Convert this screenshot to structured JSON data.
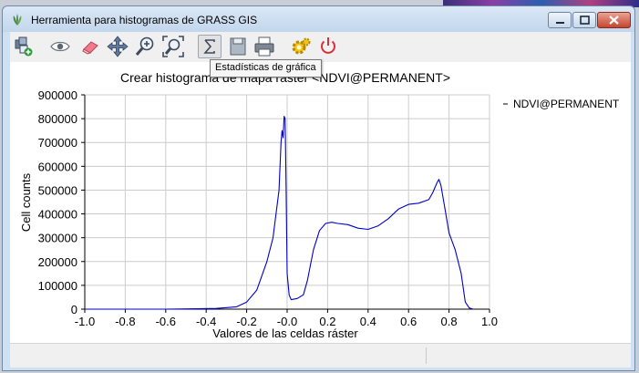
{
  "window": {
    "title": "Herramienta para histogramas de GRASS GIS"
  },
  "toolbar": {
    "tools": [
      {
        "name": "add-map-icon",
        "label": "Add raster map"
      },
      {
        "name": "eye-icon",
        "label": "Draw"
      },
      {
        "name": "eraser-icon",
        "label": "Erase"
      },
      {
        "name": "pan-icon",
        "label": "Pan"
      },
      {
        "name": "zoom-in-icon",
        "label": "Zoom"
      },
      {
        "name": "zoom-extent-icon",
        "label": "Zoom extent"
      },
      {
        "name": "sigma-icon",
        "label": "Statistics"
      },
      {
        "name": "save-icon",
        "label": "Save"
      },
      {
        "name": "print-icon",
        "label": "Print"
      },
      {
        "name": "settings-icon",
        "label": "Settings"
      },
      {
        "name": "power-icon",
        "label": "Quit"
      }
    ],
    "tooltip": "Estadísticas de gráfica"
  },
  "chart_data": {
    "type": "line",
    "title": "Crear histograma de mapa ráster <NDVI@PERMANENT>",
    "xlabel": "Valores de las celdas ráster",
    "ylabel": "Cell counts",
    "xlim": [
      -1.0,
      1.0
    ],
    "ylim": [
      0,
      900000
    ],
    "xticks": [
      "-1.0",
      "-0.8",
      "-0.6",
      "-0.4",
      "-0.2",
      "-0.0",
      "0.2",
      "0.4",
      "0.6",
      "0.8",
      "1.0"
    ],
    "yticks": [
      "0",
      "100000",
      "200000",
      "300000",
      "400000",
      "500000",
      "600000",
      "700000",
      "800000",
      "900000"
    ],
    "grid": true,
    "legend": "top-right",
    "series": [
      {
        "name": "NDVI@PERMANENT",
        "color": "#0000cc",
        "x": [
          -1.0,
          -0.6,
          -0.45,
          -0.35,
          -0.25,
          -0.2,
          -0.15,
          -0.1,
          -0.07,
          -0.04,
          -0.03,
          -0.025,
          -0.02,
          -0.015,
          -0.01,
          -0.005,
          0.0,
          0.01,
          0.02,
          0.05,
          0.08,
          0.1,
          0.13,
          0.16,
          0.19,
          0.22,
          0.25,
          0.3,
          0.35,
          0.4,
          0.45,
          0.5,
          0.55,
          0.6,
          0.65,
          0.7,
          0.72,
          0.74,
          0.75,
          0.76,
          0.78,
          0.8,
          0.83,
          0.86,
          0.88,
          0.9,
          0.92
        ],
        "y": [
          0,
          0,
          2000,
          3000,
          10000,
          30000,
          80000,
          200000,
          300000,
          500000,
          700000,
          750000,
          720000,
          810000,
          800000,
          500000,
          150000,
          60000,
          40000,
          45000,
          60000,
          120000,
          250000,
          330000,
          360000,
          365000,
          360000,
          355000,
          340000,
          335000,
          350000,
          380000,
          420000,
          440000,
          445000,
          460000,
          490000,
          530000,
          545000,
          520000,
          420000,
          320000,
          250000,
          150000,
          30000,
          5000,
          0
        ]
      }
    ]
  }
}
